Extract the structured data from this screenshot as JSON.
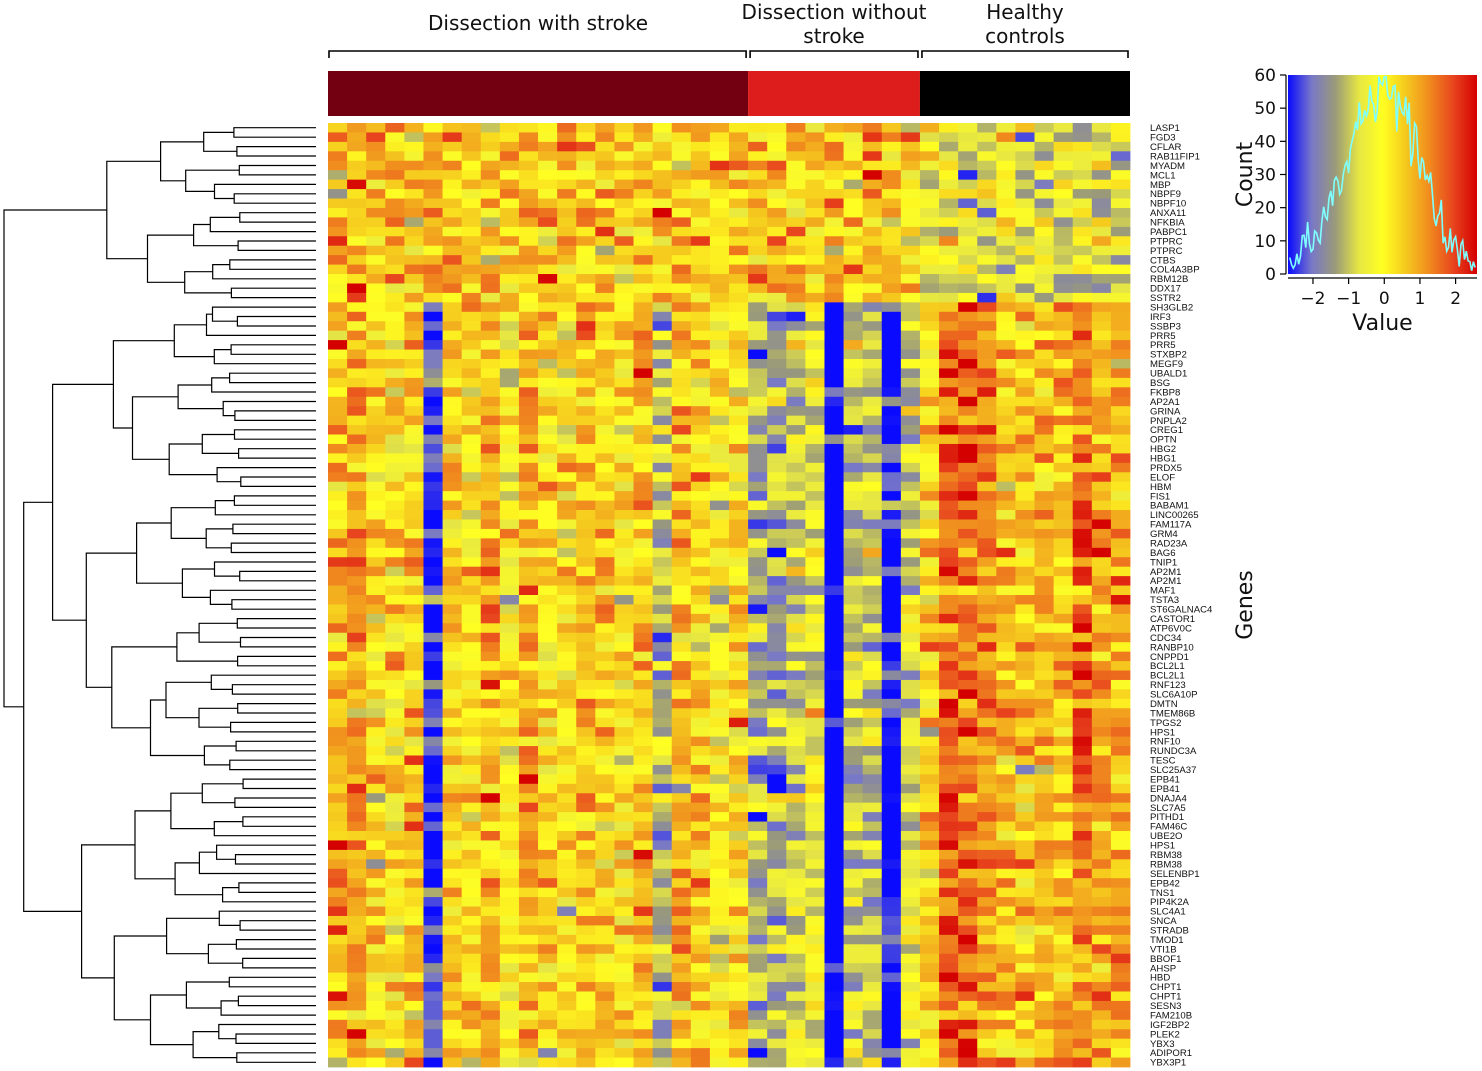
{
  "chart_data": {
    "type": "heatmap",
    "column_groups": [
      {
        "label_lines": [
          "Dissection with stroke"
        ],
        "color": "#730010",
        "n_columns": 22
      },
      {
        "label_lines": [
          "Dissection without",
          "stroke"
        ],
        "color": "#dd1c1c",
        "n_columns": 9
      },
      {
        "label_lines": [
          "Healthy",
          "controls"
        ],
        "color": "#000000",
        "n_columns": 11
      }
    ],
    "y_axis_title": "Genes",
    "row_labels": [
      "LASP1",
      "FGD3",
      "CFLAR",
      "RAB11FIP1",
      "MYADM",
      "MCL1",
      "MBP",
      "NBPF9",
      "NBPF10",
      "ANXA11",
      "NFKBIA",
      "PABPC1",
      "PTPRC",
      "PTPRC",
      "CTBS",
      "COL4A3BP",
      "RBM12B",
      "DDX17",
      "SSTR2",
      "SH3GLB2",
      "IRF3",
      "SSBP3",
      "PRR5",
      "PRR5",
      "STXBP2",
      "MEGF9",
      "UBALD1",
      "BSG",
      "FKBP8",
      "AP2A1",
      "GRINA",
      "PNPLA2",
      "CREG1",
      "OPTN",
      "HBG2",
      "HBG1",
      "PRDX5",
      "ELOF",
      "HBM",
      "FIS1",
      "BABAM1",
      "LINC00265",
      "FAM117A",
      "GRM4",
      "RAD23A",
      "BAG6",
      "TNIP1",
      "AP2M1",
      "AP2M1",
      "MAF1",
      "TSTA3",
      "ST6GALNAC4",
      "CASTOR1",
      "ATP6V0C",
      "CDC34",
      "RANBP10",
      "CNPPD1",
      "BCL2L1",
      "BCL2L1",
      "RNF123",
      "SLC6A10P",
      "DMTN",
      "TMEM86B",
      "TPGS2",
      "HPS1",
      "RNF10",
      "RUNDC3A",
      "TESC",
      "SLC25A37",
      "EPB41",
      "EPB41",
      "DNAJA4",
      "SLC7A5",
      "PITHD1",
      "FAM46C",
      "UBE2O",
      "HPS1",
      "RBM38",
      "RBM38",
      "SELENBP1",
      "EPB42",
      "TNS1",
      "PIP4K2A",
      "SLC4A1",
      "SNCA",
      "STRADB",
      "TMOD1",
      "VTI1B",
      "BBOF1",
      "AHSP",
      "HBD",
      "CHPT1",
      "CHPT1",
      "SESN3",
      "FAM210B",
      "IGF2BP2",
      "PLEK2",
      "YBX3",
      "ADIPOR1",
      "YBX3P1"
    ],
    "row_cluster_breaks": [
      19,
      69
    ],
    "color_key": {
      "x_title": "Value",
      "y_title": "Count",
      "x_ticks": [
        -2,
        -1,
        0,
        1,
        2
      ],
      "x_tick_labels": [
        "−2",
        "−1",
        "0",
        "1",
        "2"
      ],
      "y_ticks": [
        0,
        10,
        20,
        30,
        40,
        50,
        60
      ],
      "x_range": [
        -2.7,
        2.6
      ],
      "y_range": [
        0,
        60
      ],
      "colorscale": [
        "#0a0aff",
        "#7878c8",
        "#9a9a7a",
        "#e6e644",
        "#ffff22",
        "#f5c81e",
        "#f08a1e",
        "#e8441e",
        "#d40000"
      ],
      "histogram_color": "#7fffff"
    },
    "value_range": [
      -2.5,
      2.5
    ]
  }
}
